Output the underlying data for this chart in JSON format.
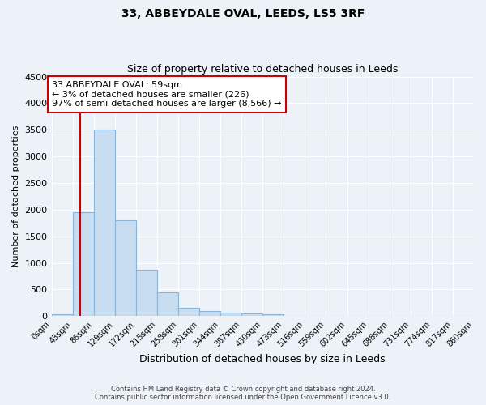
{
  "title": "33, ABBEYDALE OVAL, LEEDS, LS5 3RF",
  "subtitle": "Size of property relative to detached houses in Leeds",
  "xlabel": "Distribution of detached houses by size in Leeds",
  "ylabel": "Number of detached properties",
  "bar_color": "#c9ddf0",
  "bar_edge_color": "#8ab4d8",
  "bin_edges": [
    0,
    43,
    86,
    129,
    172,
    215,
    258,
    301,
    344,
    387,
    430,
    473,
    516,
    559,
    602,
    645,
    688,
    731,
    774,
    817,
    860
  ],
  "bar_heights": [
    30,
    1950,
    3500,
    1800,
    870,
    450,
    160,
    100,
    70,
    55,
    40,
    0,
    0,
    0,
    0,
    0,
    0,
    0,
    0,
    0
  ],
  "property_size": 59,
  "vline_color": "#cc0000",
  "ylim": [
    0,
    4500
  ],
  "yticks": [
    0,
    500,
    1000,
    1500,
    2000,
    2500,
    3000,
    3500,
    4000,
    4500
  ],
  "annotation_text": "33 ABBEYDALE OVAL: 59sqm\n← 3% of detached houses are smaller (226)\n97% of semi-detached houses are larger (8,566) →",
  "annotation_box_facecolor": "#ffffff",
  "annotation_box_edgecolor": "#cc0000",
  "footer_line1": "Contains HM Land Registry data © Crown copyright and database right 2024.",
  "footer_line2": "Contains public sector information licensed under the Open Government Licence v3.0.",
  "fig_facecolor": "#edf2f9",
  "ax_facecolor": "#edf2f9",
  "grid_color": "#ffffff",
  "tick_labels": [
    "0sqm",
    "43sqm",
    "86sqm",
    "129sqm",
    "172sqm",
    "215sqm",
    "258sqm",
    "301sqm",
    "344sqm",
    "387sqm",
    "430sqm",
    "473sqm",
    "516sqm",
    "559sqm",
    "602sqm",
    "645sqm",
    "688sqm",
    "731sqm",
    "774sqm",
    "817sqm",
    "860sqm"
  ]
}
